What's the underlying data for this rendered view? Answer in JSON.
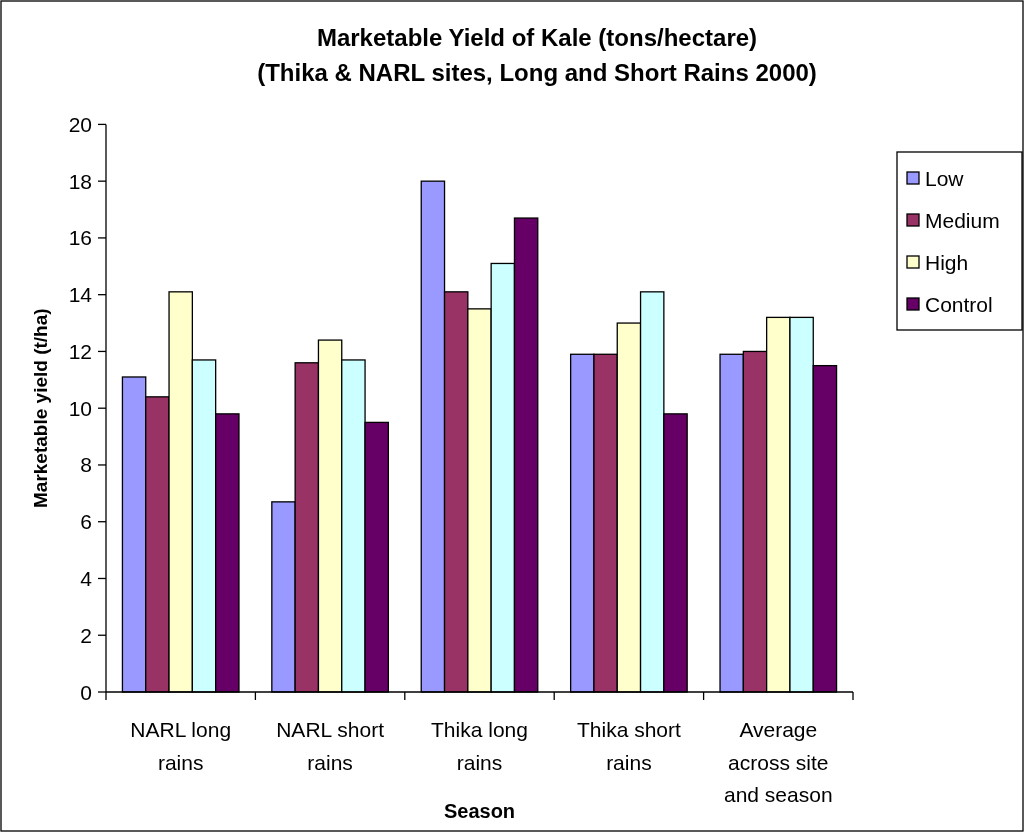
{
  "chart_data": {
    "type": "bar",
    "title": "Marketable Yield of Kale (tons/hectare)",
    "subtitle": "(Thika & NARL sites, Long and Short Rains 2000)",
    "xlabel": "Season",
    "ylabel": "Marketable yield (t/ha)",
    "categories": [
      "NARL long rains",
      "NARL short rains",
      "Thika long rains",
      "Thika short rains",
      "Average across site and season"
    ],
    "series": [
      {
        "name": "Low",
        "color": "#9999ff",
        "values": [
          11.1,
          6.7,
          18.0,
          11.9,
          11.9
        ]
      },
      {
        "name": "Medium",
        "color": "#993366",
        "values": [
          10.4,
          11.6,
          14.1,
          11.9,
          12.0
        ]
      },
      {
        "name": "High",
        "color": "#ffffcc",
        "values": [
          14.1,
          12.4,
          13.5,
          13.0,
          13.2
        ]
      },
      {
        "color": "#ccffff",
        "values": [
          11.7,
          11.7,
          15.1,
          14.1,
          13.2
        ]
      },
      {
        "name": "Control",
        "color": "#660066",
        "values": [
          9.8,
          9.5,
          16.7,
          9.8,
          11.5
        ]
      }
    ],
    "ylim": [
      0,
      20
    ],
    "yticks": [
      0,
      2,
      4,
      6,
      8,
      10,
      12,
      14,
      16,
      18,
      20
    ],
    "legend": "right"
  }
}
